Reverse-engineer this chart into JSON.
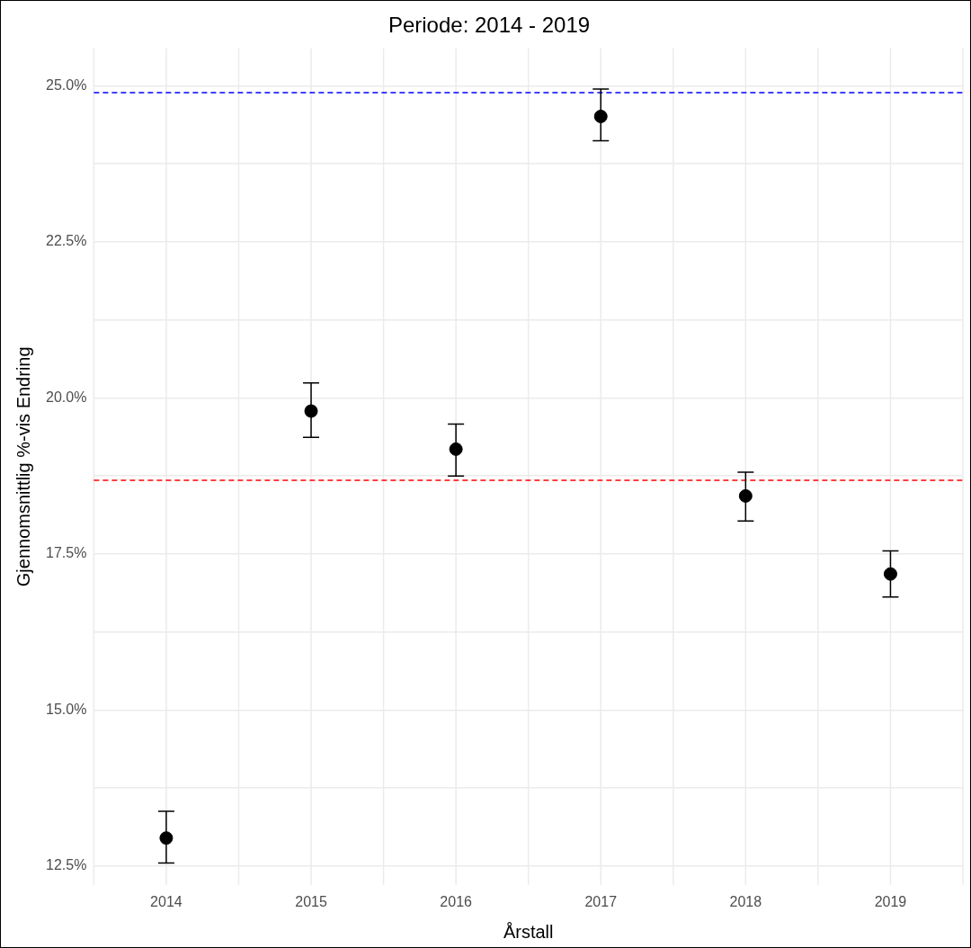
{
  "chart_data": {
    "type": "scatter",
    "title": "Periode: 2014 - 2019",
    "xlabel": "Årstall",
    "ylabel": "Gjennomsnittlig %-vis Endring",
    "categories": [
      "2014",
      "2015",
      "2016",
      "2017",
      "2018",
      "2019"
    ],
    "values": [
      12.95,
      19.79,
      19.18,
      24.51,
      18.43,
      17.18
    ],
    "errors": [
      [
        12.55,
        13.38
      ],
      [
        19.37,
        20.24
      ],
      [
        18.75,
        19.58
      ],
      [
        24.12,
        24.95
      ],
      [
        18.03,
        18.81
      ],
      [
        16.81,
        17.55
      ]
    ],
    "color": "#000000",
    "marker": "circle",
    "ylim": [
      12.2,
      25.6
    ],
    "yticks": [
      {
        "value": 12.5,
        "label": "12.5%"
      },
      {
        "value": 13.75,
        "label": null
      },
      {
        "value": 15,
        "label": "15.0%"
      },
      {
        "value": 16.25,
        "label": null
      },
      {
        "value": 17.5,
        "label": "17.5%"
      },
      {
        "value": 18.75,
        "label": null
      },
      {
        "value": 20,
        "label": "20.0%"
      },
      {
        "value": 21.25,
        "label": null
      },
      {
        "value": 22.5,
        "label": "22.5%"
      },
      {
        "value": 23.75,
        "label": null
      },
      {
        "value": 25,
        "label": "25.0%"
      }
    ],
    "ref_lines": [
      {
        "axis": "y",
        "value": 24.89,
        "color": "#0000ff",
        "line_style": "dashed"
      },
      {
        "axis": "y",
        "value": 18.68,
        "color": "#ff0000",
        "line_style": "dashed"
      }
    ],
    "grid": true,
    "legend": false
  }
}
